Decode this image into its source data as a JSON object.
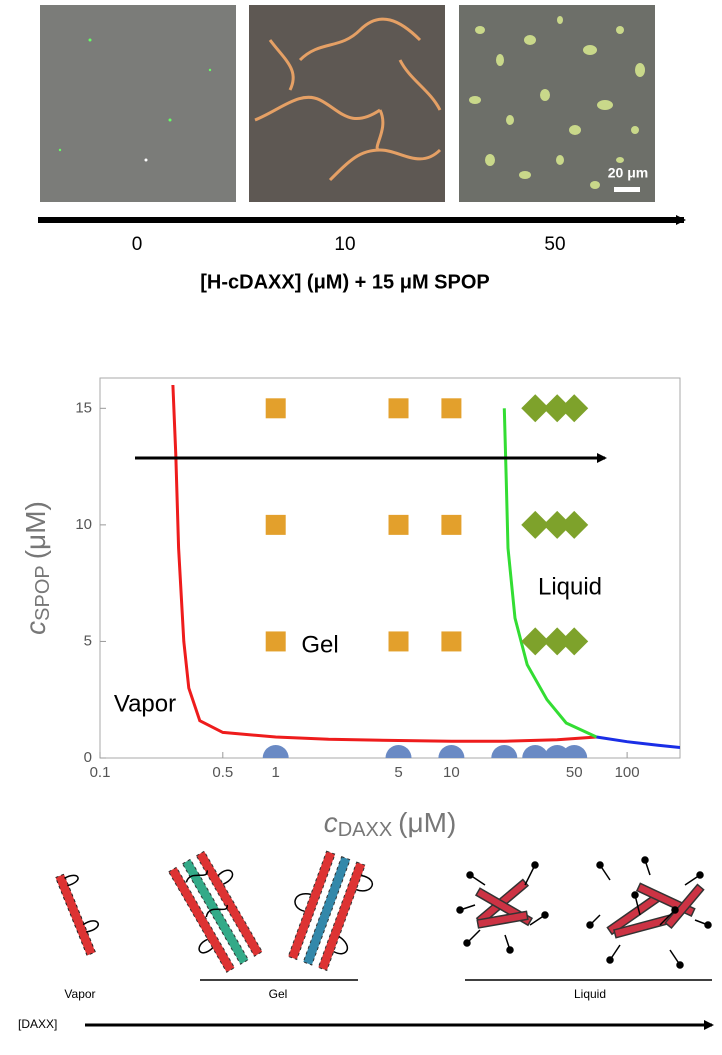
{
  "top_panel": {
    "categories": [
      "0",
      "10",
      "50"
    ],
    "axis_label": "[H-cDAXX] (μM) + 15 μM SPOP",
    "scale_bar": "20 μm"
  },
  "chart_data": {
    "type": "scatter",
    "xlabel": {
      "symbol": "c",
      "subscript": "DAXX",
      "unit": "(μM)"
    },
    "ylabel": {
      "symbol": "c",
      "subscript": "SPOP",
      "unit": "(μM)"
    },
    "xscale": "log",
    "xlim": [
      0.1,
      200
    ],
    "ylim": [
      0,
      16.3
    ],
    "xticks": [
      0.1,
      0.5,
      1,
      5,
      10,
      50,
      100
    ],
    "yticks": [
      0,
      5,
      10,
      15
    ],
    "series": [
      {
        "marker": "square",
        "color": "#e3a02c",
        "x": [
          1,
          5,
          10,
          1,
          5,
          10,
          1,
          5,
          10
        ],
        "values": [
          15,
          15,
          15,
          10,
          10,
          10,
          5,
          5,
          5
        ]
      },
      {
        "marker": "diamond",
        "color": "#7ea22b",
        "x": [
          30,
          40,
          50,
          30,
          40,
          50,
          30,
          40,
          50
        ],
        "values": [
          15,
          15,
          15,
          10,
          10,
          10,
          5,
          5,
          5
        ]
      },
      {
        "marker": "circle",
        "color": "#6a8ac4",
        "x": [
          1,
          5,
          10,
          20,
          30,
          40,
          50
        ],
        "values": [
          0,
          0,
          0,
          0,
          0,
          0,
          0
        ]
      }
    ],
    "lines": [
      {
        "color": "#ee1c1c",
        "x": [
          0.26,
          0.27,
          0.28,
          0.3,
          0.32,
          0.37,
          0.5,
          1,
          2,
          5,
          10,
          20,
          40,
          67
        ],
        "values": [
          16,
          13,
          9,
          5,
          3,
          1.6,
          1.1,
          0.9,
          0.8,
          0.75,
          0.72,
          0.72,
          0.78,
          0.9
        ]
      },
      {
        "color": "#33dd33",
        "x": [
          20,
          20.5,
          21,
          23,
          27,
          35,
          45,
          67
        ],
        "values": [
          15,
          12,
          9,
          6,
          4,
          2.5,
          1.5,
          0.9
        ]
      },
      {
        "color": "#1a2ee6",
        "x": [
          67,
          100,
          150,
          200
        ],
        "values": [
          0.9,
          0.7,
          0.55,
          0.45
        ]
      }
    ],
    "annotations": [
      "Vapor",
      "Gel",
      "Liquid"
    ]
  },
  "schematic": {
    "labels": [
      "Vapor",
      "Gel",
      "Liquid"
    ],
    "axis_label": "[DAXX]"
  }
}
